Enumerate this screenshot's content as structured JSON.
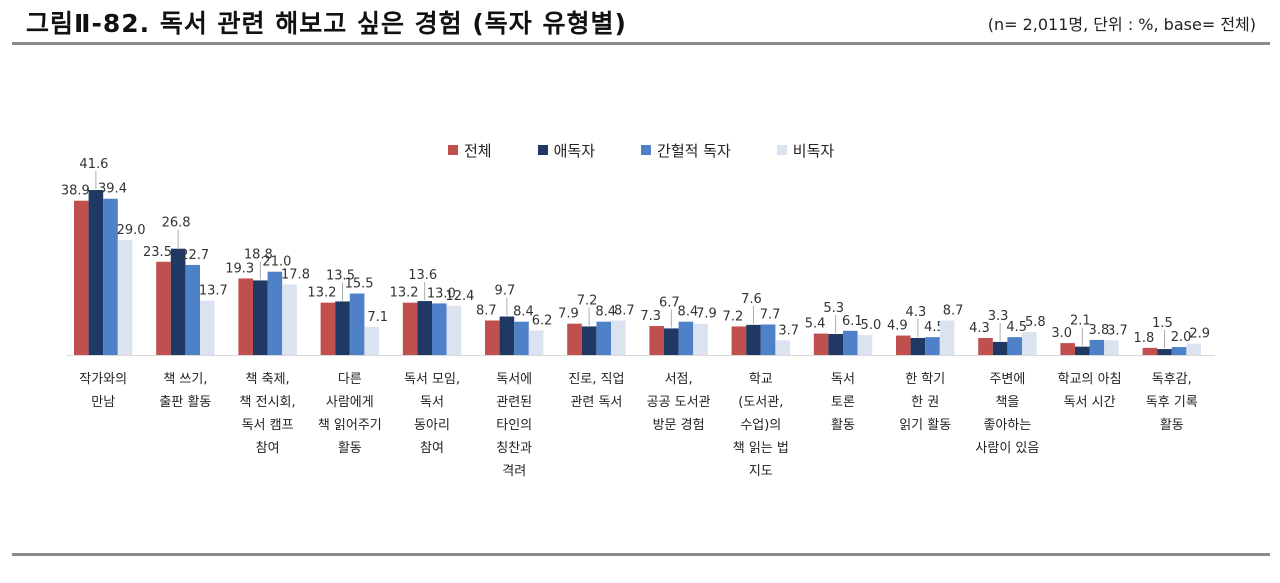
{
  "header": {
    "title": "그림Ⅱ-82. 독서 관련 해보고 싶은 경험 (독자 유형별)",
    "note": "(n= 2,011명, 단위 : %, base= 전체)"
  },
  "chart_data": {
    "type": "bar",
    "categories": [
      [
        "작가와의",
        "만남"
      ],
      [
        "책 쓰기,",
        "출판 활동"
      ],
      [
        "책 축제,",
        "책 전시회,",
        "독서 캠프",
        "참여"
      ],
      [
        "다른",
        "사람에게",
        "책 읽어주기",
        "활동"
      ],
      [
        "독서 모임,",
        "독서",
        "동아리",
        "참여"
      ],
      [
        "독서에",
        "관련된",
        "타인의",
        "칭찬과",
        "격려"
      ],
      [
        "진로, 직업",
        "관련 독서"
      ],
      [
        "서점,",
        "공공 도서관",
        "방문 경험"
      ],
      [
        "학교",
        "(도서관,",
        "수업)의",
        "책 읽는 법",
        "지도"
      ],
      [
        "독서",
        "토론",
        "활동"
      ],
      [
        "한 학기",
        "한 권",
        "읽기 활동"
      ],
      [
        "주변에",
        "책을",
        "좋아하는",
        "사람이 있음"
      ],
      [
        "학교의 아침",
        "독서 시간"
      ],
      [
        "독후감,",
        "독후 기록",
        "활동"
      ]
    ],
    "series": [
      {
        "name": "전체",
        "color": "#c0504d",
        "values": [
          38.9,
          23.5,
          19.3,
          13.2,
          13.2,
          8.7,
          7.9,
          7.3,
          7.2,
          5.4,
          4.9,
          4.3,
          3.0,
          1.8
        ]
      },
      {
        "name": "애독자",
        "color": "#1f3864",
        "values": [
          41.6,
          26.8,
          18.8,
          13.5,
          13.6,
          9.7,
          7.2,
          6.7,
          7.6,
          5.3,
          4.3,
          3.3,
          2.1,
          1.5
        ]
      },
      {
        "name": "간헐적 독자",
        "color": "#4f81c9",
        "values": [
          39.4,
          22.7,
          21.0,
          15.5,
          13.0,
          8.4,
          8.4,
          8.4,
          7.7,
          6.1,
          4.5,
          4.5,
          3.8,
          2.0
        ]
      },
      {
        "name": "비독자",
        "color": "#dbe3f1",
        "values": [
          29.0,
          13.7,
          17.8,
          7.1,
          12.4,
          6.2,
          8.7,
          7.9,
          3.7,
          5.0,
          8.7,
          5.8,
          3.7,
          2.9
        ]
      }
    ],
    "ylim": [
      0,
      45
    ],
    "legend_position": "top-center",
    "grid": false,
    "value_labels": true
  }
}
